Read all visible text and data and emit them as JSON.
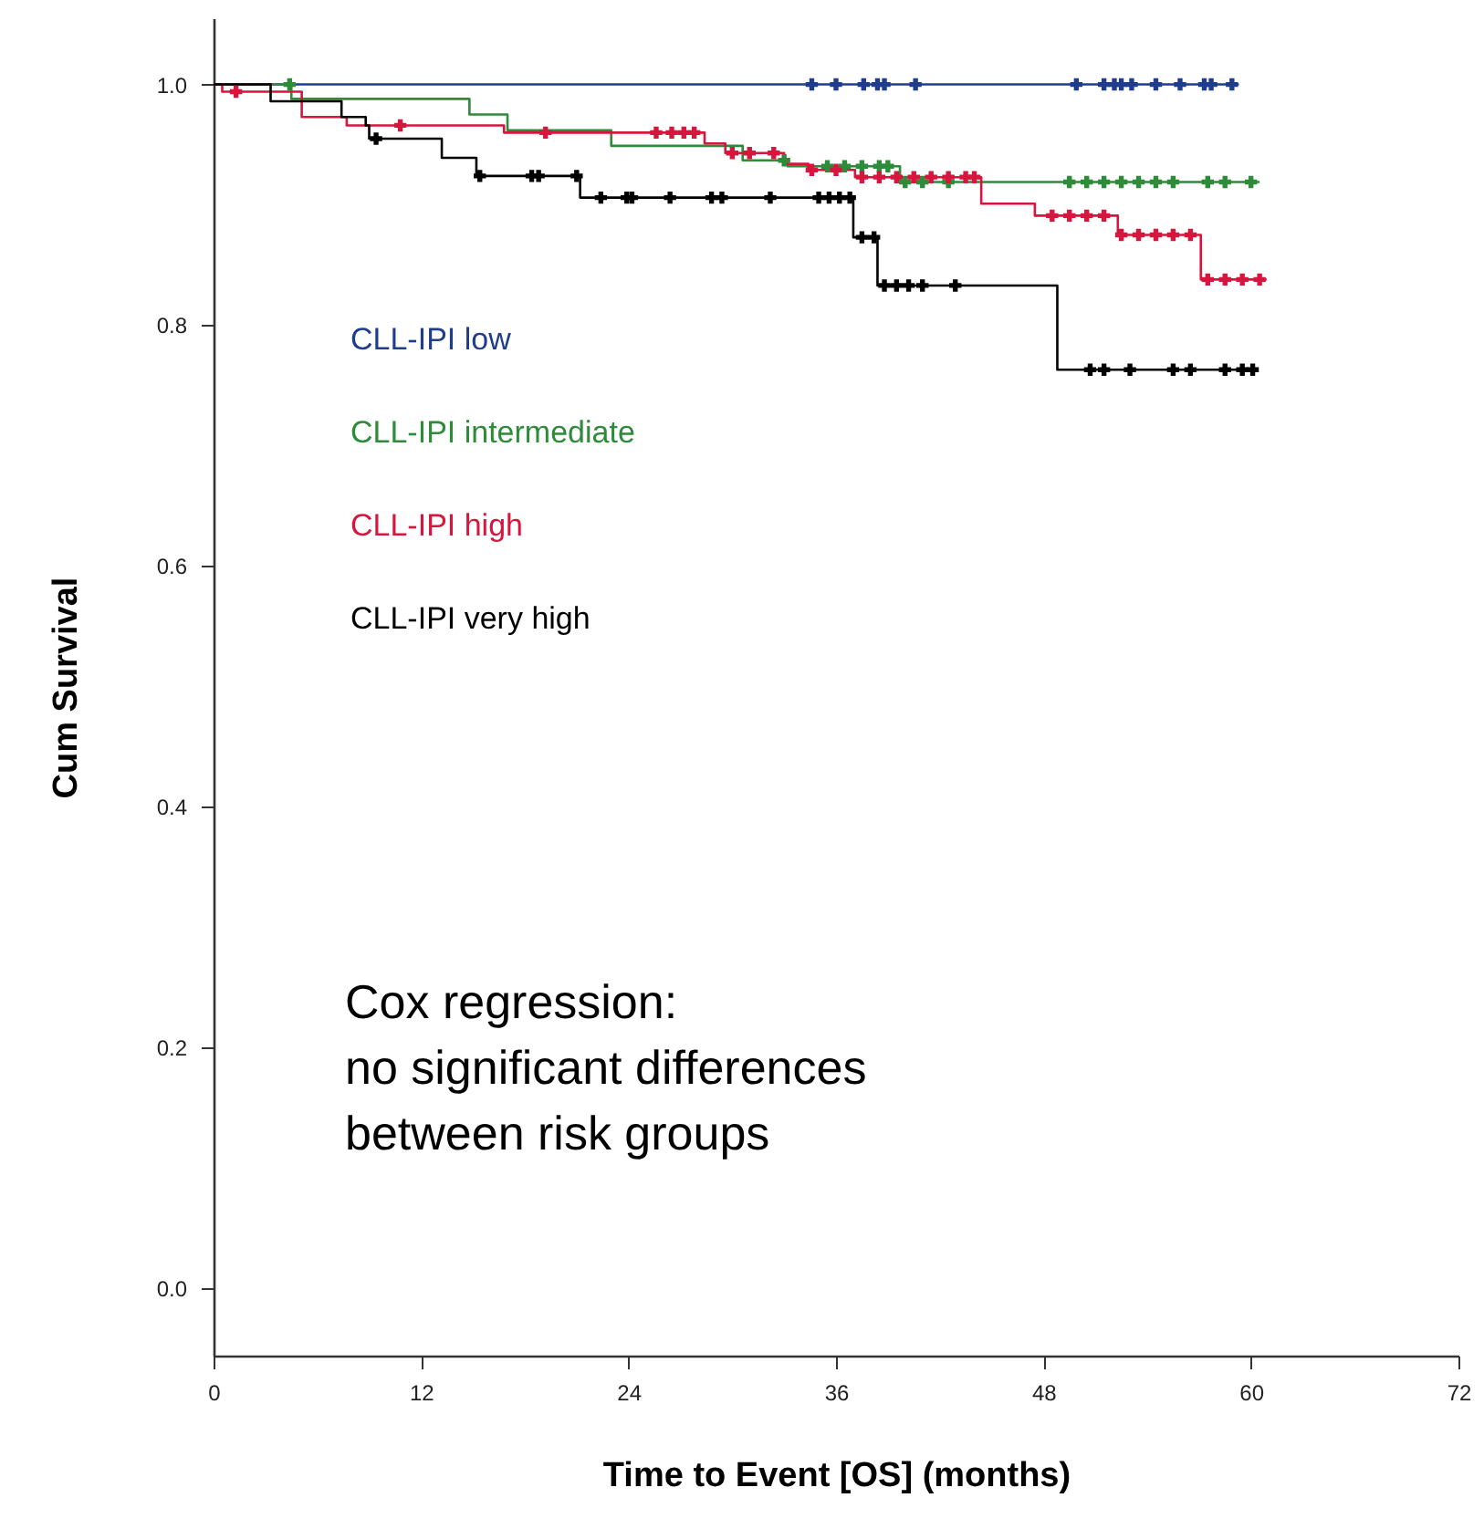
{
  "chart_data": {
    "type": "step",
    "xlabel": "Time to Event [OS] (months)",
    "ylabel": "Cum Survival",
    "xlim": [
      0,
      72
    ],
    "ylim": [
      -0.056,
      1.055
    ],
    "xticks": [
      0,
      12,
      24,
      36,
      48,
      60,
      72
    ],
    "yticks": [
      {
        "value": 0,
        "label": "0.0"
      },
      {
        "value": 0.2,
        "label": "0.2"
      },
      {
        "value": 0.4,
        "label": "0.4"
      },
      {
        "value": 0.6,
        "label": "0.6"
      },
      {
        "value": 0.8,
        "label": "0.8"
      },
      {
        "value": 1,
        "label": "1.0"
      }
    ],
    "grid": false,
    "legend": "left",
    "line_style": "solid",
    "annotations": [
      "Cox regression:\nno significant differences\nbetween risk groups"
    ],
    "series": [
      {
        "name": "CLL-IPI low",
        "color": "#1f3d8c",
        "x": [
          0,
          59.3
        ],
        "values": [
          1,
          1
        ]
      },
      {
        "name": "CLL-IPI intermediate",
        "color": "#2e8b3a",
        "x": [
          0,
          4.5,
          14.8,
          17.0,
          23.0,
          30.6,
          33.2,
          39.7,
          60.5
        ],
        "values": [
          1,
          0.988,
          0.975,
          0.962,
          0.949,
          0.937,
          0.932,
          0.919,
          0.919
        ]
      },
      {
        "name": "CLL-IPI high",
        "color": "#d6163c",
        "x": [
          0,
          0.5,
          5.1,
          7.7,
          16.8,
          28.4,
          29.6,
          33.0,
          34.4,
          37.1,
          44.4,
          47.5,
          52.3,
          57.1,
          60.9
        ],
        "values": [
          1,
          0.994,
          0.973,
          0.966,
          0.96,
          0.951,
          0.943,
          0.934,
          0.929,
          0.923,
          0.901,
          0.891,
          0.875,
          0.838,
          0.838
        ]
      },
      {
        "name": "CLL-IPI very high",
        "color": "#000000",
        "x": [
          0,
          3.3,
          7.4,
          8.8,
          9.0,
          13.2,
          15.2,
          21.2,
          37.0,
          38.4,
          48.8,
          60.3
        ],
        "values": [
          1,
          0.986,
          0.973,
          0.966,
          0.955,
          0.939,
          0.924,
          0.906,
          0.873,
          0.833,
          0.763,
          0.763
        ]
      },
      {
        "type": "scatter",
        "marker": "cross",
        "color": "#1f3d8c",
        "x": [
          34.6,
          36.0,
          37.6,
          38.4,
          38.8,
          40.6,
          49.9,
          51.5,
          52.1,
          52.5,
          53.1,
          54.5,
          55.9,
          57.3,
          57.7,
          58.9
        ],
        "values": [
          1,
          1,
          1,
          1,
          1,
          1,
          1,
          1,
          1,
          1,
          1,
          1,
          1,
          1,
          1,
          1
        ]
      },
      {
        "type": "scatter",
        "marker": "cross",
        "color": "#2e8b3a",
        "x": [
          4.4,
          33.0,
          35.5,
          36.5,
          37.5,
          38.5,
          39.0,
          40.0,
          41.0,
          42.5,
          49.5,
          50.5,
          51.5,
          52.5,
          53.5,
          54.5,
          55.5,
          57.5,
          58.5,
          60.0
        ],
        "values": [
          1,
          0.937,
          0.932,
          0.932,
          0.932,
          0.932,
          0.932,
          0.919,
          0.919,
          0.919,
          0.919,
          0.919,
          0.919,
          0.919,
          0.919,
          0.919,
          0.919,
          0.919,
          0.919,
          0.919
        ]
      },
      {
        "type": "scatter",
        "marker": "cross",
        "color": "#d6163c",
        "x": [
          1.3,
          10.8,
          19.2,
          25.6,
          26.5,
          27.2,
          27.8,
          30.0,
          31.0,
          32.4,
          34.6,
          36.0,
          37.5,
          38.5,
          39.5,
          40.5,
          41.5,
          42.5,
          43.5,
          44.0,
          48.5,
          49.5,
          50.5,
          51.5,
          52.5,
          53.5,
          54.5,
          55.5,
          56.5,
          57.5,
          58.5,
          59.5,
          60.5
        ],
        "values": [
          0.994,
          0.966,
          0.96,
          0.96,
          0.96,
          0.96,
          0.96,
          0.943,
          0.943,
          0.943,
          0.929,
          0.929,
          0.923,
          0.923,
          0.923,
          0.923,
          0.923,
          0.923,
          0.923,
          0.923,
          0.891,
          0.891,
          0.891,
          0.891,
          0.875,
          0.875,
          0.875,
          0.875,
          0.875,
          0.838,
          0.838,
          0.838,
          0.838
        ]
      },
      {
        "type": "scatter",
        "marker": "cross",
        "color": "#000000",
        "x": [
          9.4,
          15.4,
          18.4,
          18.8,
          21.0,
          22.4,
          23.9,
          24.2,
          26.4,
          28.8,
          29.4,
          32.2,
          35.0,
          35.6,
          36.2,
          36.8,
          37.5,
          38.2,
          38.8,
          39.5,
          40.2,
          41.0,
          42.9,
          50.7,
          51.5,
          53.0,
          55.5,
          56.5,
          58.5,
          59.5,
          60.1
        ],
        "values": [
          0.955,
          0.924,
          0.924,
          0.924,
          0.924,
          0.906,
          0.906,
          0.906,
          0.906,
          0.906,
          0.906,
          0.906,
          0.906,
          0.906,
          0.906,
          0.906,
          0.873,
          0.873,
          0.833,
          0.833,
          0.833,
          0.833,
          0.833,
          0.763,
          0.763,
          0.763,
          0.763,
          0.763,
          0.763,
          0.763,
          0.763
        ]
      }
    ]
  }
}
